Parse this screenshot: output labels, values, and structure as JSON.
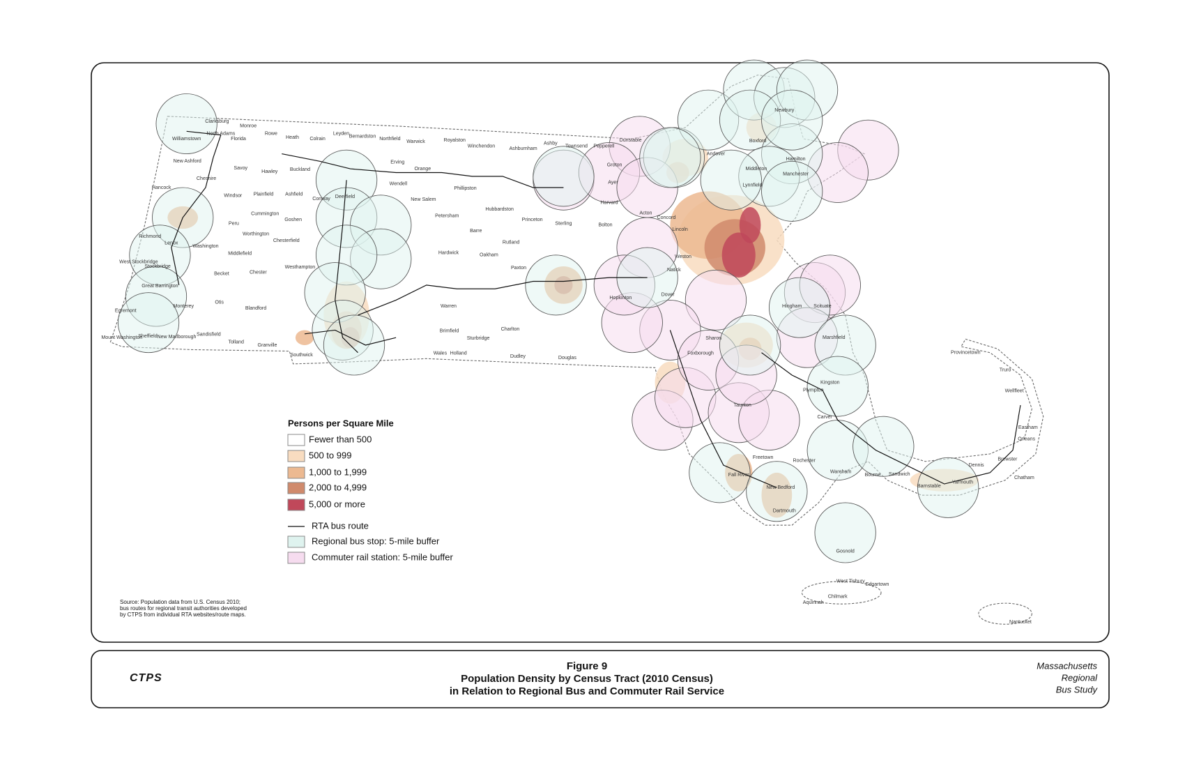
{
  "map": {
    "legend": {
      "title": "Persons per Square Mile",
      "density": [
        {
          "label": "Fewer than 500",
          "color": "#ffffff"
        },
        {
          "label": "500 to 999",
          "color": "#f8dcc0"
        },
        {
          "label": "1,000 to 1,999",
          "color": "#ecb991"
        },
        {
          "label": "2,000 to 4,999",
          "color": "#d08a6c"
        },
        {
          "label": "5,000 or more",
          "color": "#c0485a"
        }
      ],
      "route": {
        "label": "RTA bus route"
      },
      "buffers": [
        {
          "label": "Regional bus stop: 5-mile buffer",
          "color": "#dff3ef"
        },
        {
          "label": "Commuter rail station: 5-mile buffer",
          "color": "#f6dcef"
        }
      ]
    },
    "places": [
      "Williamstown",
      "Clarksburg",
      "North Adams",
      "Florida",
      "Monroe",
      "Rowe",
      "Heath",
      "Colrain",
      "Leyden",
      "Bernardston",
      "Northfield",
      "Warwick",
      "Royalston",
      "Winchendon",
      "Ashburnham",
      "Ashby",
      "Townsend",
      "Pepperell",
      "Dunstable",
      "New Ashford",
      "Savoy",
      "Cheshire",
      "Hawley",
      "Buckland",
      "Erving",
      "Orange",
      "Hancock",
      "Windsor",
      "Plainfield",
      "Ashfield",
      "Conway",
      "Deerfield",
      "Wendell",
      "New Salem",
      "Phillipston",
      "Hubbardston",
      "Petersham",
      "Barre",
      "Princeton",
      "Sterling",
      "Bolton",
      "Peru",
      "Cummington",
      "Worthington",
      "Chesterfield",
      "Goshen",
      "Lenox",
      "Washington",
      "Middlefield",
      "Hardwick",
      "Oakham",
      "Rutland",
      "Paxton",
      "Becket",
      "Chester",
      "Westhampton",
      "Stockbridge",
      "Great Barrington",
      "Otis",
      "Blandford",
      "Monterey",
      "Sheffield",
      "New Marlborough",
      "Sandisfield",
      "Tolland",
      "Granville",
      "Southwick",
      "Warren",
      "Brimfield",
      "Wales",
      "Holland",
      "Charlton",
      "Sturbridge",
      "Dudley",
      "Douglas",
      "Hopkinton",
      "Dover",
      "Sharon",
      "Foxborough",
      "Carver",
      "Wareham",
      "Bourne",
      "Sandwich",
      "Barnstable",
      "Yarmouth",
      "Dennis",
      "Brewster",
      "Chatham",
      "Orleans",
      "Eastham",
      "Wellfleet",
      "Truro",
      "Provincetown",
      "Nantucket",
      "Edgartown",
      "West Tisbury",
      "Chilmark",
      "Aquinnah",
      "Gosnold",
      "Fall River",
      "New Bedford",
      "Dartmouth",
      "Rochester",
      "Freetown",
      "Taunton",
      "Plympton",
      "Kingston",
      "Marshfield",
      "Scituate",
      "Hingham",
      "Concord",
      "Lincoln",
      "Acton",
      "Harvard",
      "Ayer",
      "Groton",
      "Andover",
      "Boxford",
      "Newbury",
      "Hamilton",
      "Manchester",
      "Lynnfield",
      "Middleton",
      "Weston",
      "Natick",
      "Mount Washington",
      "Egremont",
      "Richmond",
      "West Stockbridge"
    ],
    "source": [
      "Source: Population data from U.S. Census 2010;",
      "bus routes for regional transit authorities developed",
      "by CTPS from individual RTA websites/route maps."
    ]
  },
  "footer": {
    "logo": "CTPS",
    "figure": "Figure 9",
    "title_lines": [
      "Population Density by Census Tract (2010 Census)",
      "in Relation to Regional Bus and Commuter Rail Service"
    ],
    "study": [
      "Massachusetts",
      "Regional",
      "Bus Study"
    ]
  }
}
